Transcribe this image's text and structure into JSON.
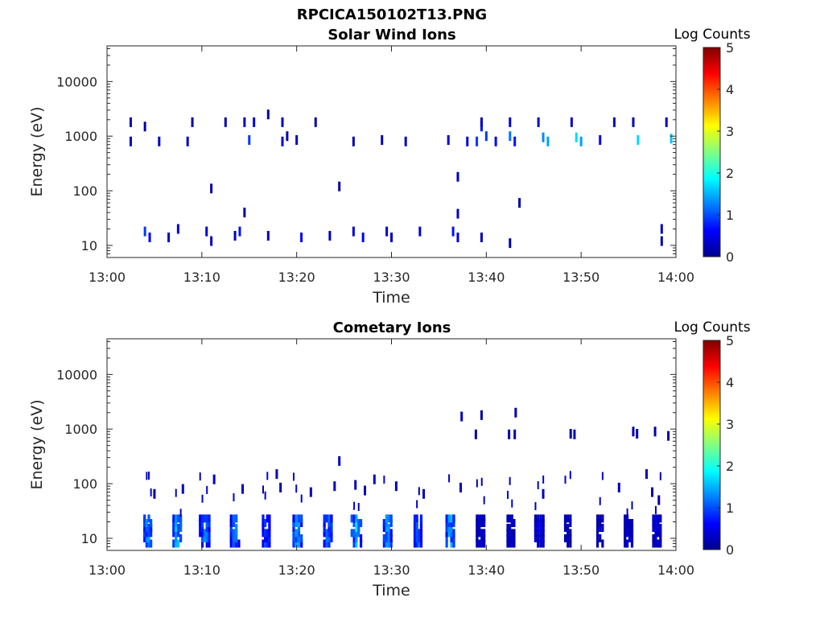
{
  "figure_title": "RPCICA150102T13.PNG",
  "colorbar": {
    "label": "Log Counts",
    "ticks": [
      "0",
      "1",
      "2",
      "3",
      "4",
      "5"
    ],
    "range": [
      0,
      5
    ],
    "colormap": "jet"
  },
  "chart_data": [
    {
      "type": "heatmap",
      "title": "Solar Wind Ions",
      "xlabel": "Time",
      "ylabel": "Energy (eV)",
      "x_ticks": [
        "13:00",
        "13:10",
        "13:20",
        "13:30",
        "13:40",
        "13:50",
        "14:00"
      ],
      "x_range_minutes": [
        0,
        60
      ],
      "y_ticks": [
        "10",
        "100",
        "1000",
        "10000"
      ],
      "y_scale": "log",
      "y_range": [
        6,
        45000
      ],
      "cells": [
        [
          2.5,
          1800,
          0.3
        ],
        [
          2.5,
          800,
          0.3
        ],
        [
          4.0,
          1500,
          0.2
        ],
        [
          5.5,
          800,
          0.3
        ],
        [
          8.5,
          800,
          0.3
        ],
        [
          9.0,
          1800,
          0.2
        ],
        [
          12.5,
          1800,
          0.2
        ],
        [
          11.0,
          110,
          0.2
        ],
        [
          14.5,
          1800,
          0.3
        ],
        [
          15.5,
          1800,
          0.5
        ],
        [
          15.0,
          850,
          0.9
        ],
        [
          17.0,
          2500,
          0.2
        ],
        [
          18.5,
          1800,
          0.3
        ],
        [
          18.5,
          800,
          0.4
        ],
        [
          19.0,
          1000,
          0.2
        ],
        [
          20.0,
          850,
          0.3
        ],
        [
          22.0,
          1800,
          0.2
        ],
        [
          26.0,
          800,
          0.2
        ],
        [
          29.0,
          850,
          0.3
        ],
        [
          31.5,
          800,
          0.3
        ],
        [
          36.0,
          850,
          0.4
        ],
        [
          38.0,
          800,
          0.4
        ],
        [
          39.0,
          800,
          0.9
        ],
        [
          39.5,
          1500,
          0.7
        ],
        [
          39.5,
          1800,
          0.3
        ],
        [
          40.0,
          1000,
          0.9
        ],
        [
          41.0,
          800,
          0.6
        ],
        [
          42.5,
          1800,
          0.4
        ],
        [
          42.5,
          1000,
          1.2
        ],
        [
          43.0,
          800,
          0.7
        ],
        [
          45.5,
          1800,
          0.4
        ],
        [
          46.0,
          950,
          1.3
        ],
        [
          46.5,
          800,
          1.4
        ],
        [
          49.0,
          1800,
          0.4
        ],
        [
          49.5,
          950,
          1.7
        ],
        [
          50.0,
          800,
          1.4
        ],
        [
          52.0,
          850,
          0.6
        ],
        [
          53.5,
          1800,
          0.3
        ],
        [
          55.5,
          1800,
          0.3
        ],
        [
          56.0,
          850,
          1.7
        ],
        [
          59.0,
          1800,
          0.3
        ],
        [
          59.5,
          900,
          1.6
        ],
        [
          14.5,
          40,
          0.2
        ],
        [
          24.5,
          120,
          0.2
        ],
        [
          37.0,
          180,
          0.3
        ],
        [
          37.0,
          38,
          0.3
        ],
        [
          43.5,
          60,
          0.2
        ],
        [
          4.0,
          18,
          0.9
        ],
        [
          4.5,
          14,
          0.6
        ],
        [
          6.5,
          14,
          0.3
        ],
        [
          7.5,
          20,
          0.4
        ],
        [
          10.5,
          18,
          0.4
        ],
        [
          11.0,
          12,
          0.3
        ],
        [
          13.5,
          15,
          0.3
        ],
        [
          14.0,
          18,
          0.7
        ],
        [
          17.0,
          15,
          0.3
        ],
        [
          20.5,
          14,
          0.6
        ],
        [
          23.5,
          15,
          0.3
        ],
        [
          26.0,
          18,
          0.4
        ],
        [
          27.0,
          14,
          0.6
        ],
        [
          29.5,
          18,
          0.4
        ],
        [
          30.0,
          14,
          0.3
        ],
        [
          33.0,
          18,
          0.5
        ],
        [
          36.5,
          18,
          0.7
        ],
        [
          37.0,
          14,
          0.4
        ],
        [
          39.5,
          14,
          0.3
        ],
        [
          42.5,
          11,
          0.2
        ],
        [
          58.5,
          20,
          0.3
        ],
        [
          58.5,
          12,
          0.2
        ]
      ]
    },
    {
      "type": "heatmap",
      "title": "Cometary Ions",
      "xlabel": "Time",
      "ylabel": "Energy (eV)",
      "x_ticks": [
        "13:00",
        "13:10",
        "13:20",
        "13:30",
        "13:40",
        "13:50",
        "14:00"
      ],
      "x_range_minutes": [
        0,
        60
      ],
      "y_ticks": [
        "10",
        "100",
        "1000",
        "10000"
      ],
      "y_scale": "log",
      "y_range": [
        6,
        45000
      ],
      "bursts": [
        [
          4.3,
          0.9,
          1.7
        ],
        [
          7.4,
          1.0,
          1.9
        ],
        [
          10.3,
          1.2,
          1.6
        ],
        [
          13.5,
          1.1,
          1.5
        ],
        [
          16.8,
          0.9,
          1.3
        ],
        [
          20.1,
          1.1,
          1.7
        ],
        [
          23.3,
          1.0,
          1.6
        ],
        [
          26.3,
          1.2,
          1.8
        ],
        [
          29.6,
          1.0,
          1.7
        ],
        [
          32.8,
          0.9,
          1.5
        ],
        [
          36.2,
          1.0,
          1.8
        ],
        [
          39.4,
          1.0,
          0.5
        ],
        [
          42.6,
          0.9,
          0.5
        ],
        [
          45.6,
          1.1,
          0.6
        ],
        [
          48.6,
          0.8,
          0.4
        ],
        [
          52.0,
          0.8,
          0.4
        ],
        [
          55.0,
          1.0,
          0.5
        ],
        [
          58.0,
          1.0,
          0.6
        ]
      ],
      "cells": [
        [
          5.0,
          65,
          0.2
        ],
        [
          8.0,
          80,
          0.3
        ],
        [
          11.3,
          120,
          0.3
        ],
        [
          14.3,
          80,
          0.3
        ],
        [
          17.9,
          150,
          0.3
        ],
        [
          18.3,
          85,
          0.2
        ],
        [
          21.5,
          70,
          0.3
        ],
        [
          24.0,
          90,
          0.3
        ],
        [
          24.5,
          260,
          0.3
        ],
        [
          26.2,
          95,
          0.3
        ],
        [
          27.2,
          75,
          0.3
        ],
        [
          28.2,
          120,
          0.3
        ],
        [
          30.5,
          90,
          0.3
        ],
        [
          33.4,
          65,
          0.3
        ],
        [
          37.4,
          1700,
          0.3
        ],
        [
          38.9,
          800,
          0.2
        ],
        [
          39.5,
          1800,
          0.2
        ],
        [
          42.4,
          800,
          0.2
        ],
        [
          43.1,
          2000,
          0.2
        ],
        [
          43.0,
          800,
          0.2
        ],
        [
          37.3,
          85,
          0.3
        ],
        [
          46.0,
          65,
          0.3
        ],
        [
          48.9,
          820,
          0.2
        ],
        [
          49.3,
          800,
          0.3
        ],
        [
          54.0,
          85,
          0.3
        ],
        [
          55.5,
          900,
          0.2
        ],
        [
          55.9,
          820,
          0.2
        ],
        [
          56.9,
          150,
          0.3
        ],
        [
          57.8,
          900,
          0.2
        ],
        [
          57.5,
          70,
          0.2
        ],
        [
          59.2,
          750,
          0.2
        ],
        [
          58.2,
          50,
          0.2
        ]
      ]
    }
  ]
}
